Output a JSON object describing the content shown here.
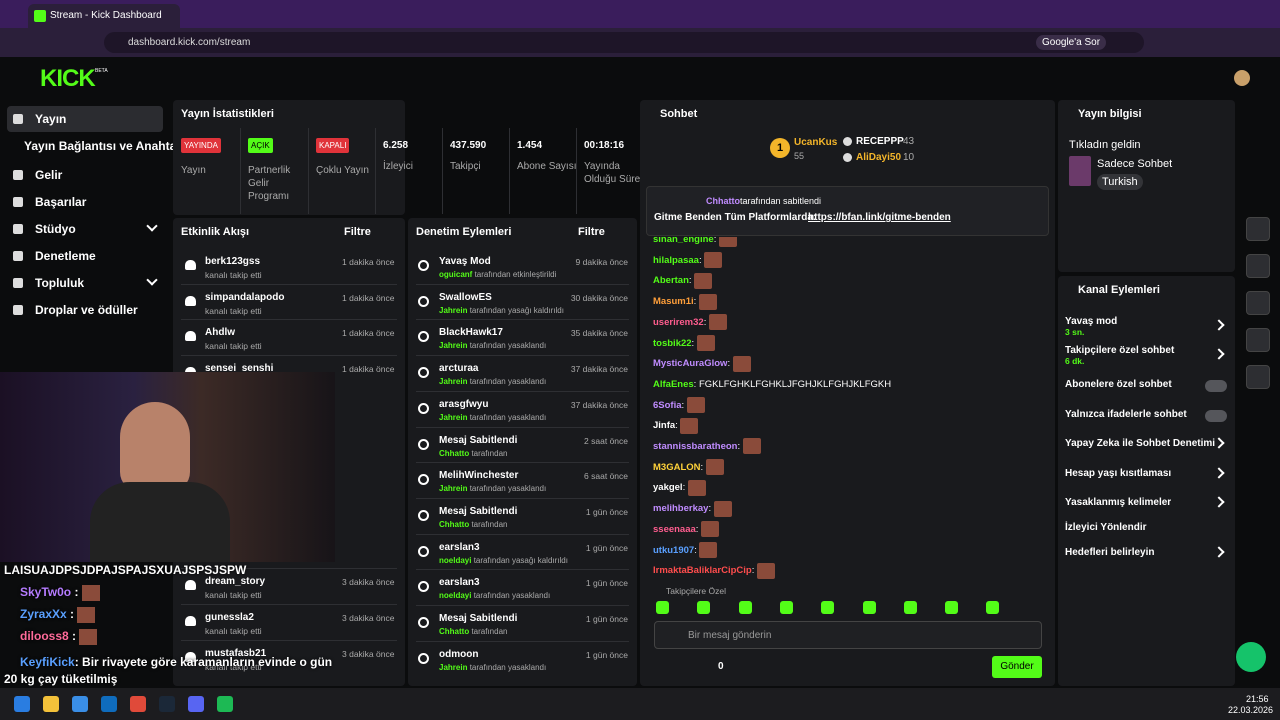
{
  "browser": {
    "tab_title": "Stream - Kick Dashboard",
    "url": "dashboard.kick.com/stream",
    "google_button": "Google'a Sor"
  },
  "header": {
    "logo": "KICK",
    "beta": "BETA"
  },
  "sidebar": {
    "items": [
      "Yayın",
      "Yayın Bağlantısı ve Anahtarı",
      "Gelir",
      "Başarılar",
      "Stüdyo",
      "Denetleme",
      "Topluluk",
      "Droplar ve ödüller"
    ]
  },
  "stats": {
    "title": "Yayın İstatistikleri",
    "items": [
      {
        "badge": "YAYINDA",
        "label": "Yayın"
      },
      {
        "badge": "AÇIK",
        "label": "Partnerlik Gelir Programı"
      },
      {
        "badge": "KAPALI",
        "label": "Çoklu Yayın"
      },
      {
        "value": "6.258",
        "label": "İzleyici"
      },
      {
        "value": "437.590",
        "label": "Takipçi"
      },
      {
        "value": "1.454",
        "label": "Abone Sayısı"
      },
      {
        "value": "00:18:16",
        "label": "Yayında Olduğu Süre"
      }
    ]
  },
  "activity": {
    "title": "Etkinlik Akışı",
    "filter": "Filtre",
    "items": [
      {
        "name": "berk123gss",
        "action": "kanalı takip etti",
        "time": "1 dakika önce"
      },
      {
        "name": "simpandalapodo",
        "action": "kanalı takip etti",
        "time": "1 dakika önce"
      },
      {
        "name": "Ahdlw",
        "action": "kanalı takip etti",
        "time": "1 dakika önce"
      },
      {
        "name": "sensei_senshi",
        "action": "kanalı takip etti",
        "time": "1 dakika önce"
      },
      {
        "name": "dream_story",
        "action": "kanalı takip etti",
        "time": "3 dakika önce"
      },
      {
        "name": "gunessla2",
        "action": "kanalı takip etti",
        "time": "3 dakika önce"
      },
      {
        "name": "mustafasb21",
        "action": "kanalı takip etti",
        "time": "3 dakika önce"
      }
    ]
  },
  "webcam_overlay": {
    "messages": [
      {
        "text": "LAISUAJDPSJDPAJSPAJSXUAJSPSJSPW"
      },
      {
        "user": "SkyTw0o",
        "color": "#b57cff"
      },
      {
        "user": "ZyraxXx",
        "color": "#5aa0ff"
      },
      {
        "user": "dilooss8",
        "color": "#ff6b9a"
      },
      {
        "user": "KeyfiKick",
        "color": "#5aa0ff",
        "text": "Bir rivayete göre karamanların evinde o gün 20 kg çay tüketilmiş"
      }
    ]
  },
  "moderation": {
    "title": "Denetim Eylemleri",
    "filter": "Filtre",
    "items": [
      {
        "title": "Yavaş Mod",
        "by": "oguicanf",
        "desc": "tarafından etkinleştirildi",
        "time": "9 dakika önce"
      },
      {
        "title": "SwallowES",
        "by": "Jahrein",
        "desc": "tarafından yasağı kaldırıldı",
        "time": "30 dakika önce"
      },
      {
        "title": "BlackHawk17",
        "by": "Jahrein",
        "desc": "tarafından yasaklandı",
        "time": "35 dakika önce"
      },
      {
        "title": "arcturaa",
        "by": "Jahrein",
        "desc": "tarafından yasaklandı",
        "time": "37 dakika önce"
      },
      {
        "title": "arasgfwyu",
        "by": "Jahrein",
        "desc": "tarafından yasaklandı",
        "time": "37 dakika önce"
      },
      {
        "title": "Mesaj Sabitlendi",
        "by": "Chhatto",
        "desc": "tarafından",
        "time": "2 saat önce"
      },
      {
        "title": "MelihWinchester",
        "by": "Jahrein",
        "desc": "tarafından yasaklandı",
        "time": "6 saat önce"
      },
      {
        "title": "Mesaj Sabitlendi",
        "by": "Chhatto",
        "desc": "tarafından",
        "time": "1 gün önce"
      },
      {
        "title": "earslan3",
        "by": "noeldayi",
        "desc": "tarafından yasağı kaldırıldı",
        "time": "1 gün önce"
      },
      {
        "title": "earslan3",
        "by": "noeldayi",
        "desc": "tarafından yasaklandı",
        "time": "1 gün önce"
      },
      {
        "title": "Mesaj Sabitlendi",
        "by": "Chhatto",
        "desc": "tarafından",
        "time": "1 gün önce"
      },
      {
        "title": "odmoon",
        "by": "Jahrein",
        "desc": "tarafından yasaklandı",
        "time": "1 gün önce"
      }
    ]
  },
  "chat": {
    "title": "Sohbet",
    "leaders": [
      {
        "rank": 1,
        "name": "UcanKus",
        "points": 55
      },
      {
        "name": "RECEPPP",
        "points": 43
      },
      {
        "name": "AliDayi50",
        "points": 10
      }
    ],
    "pinned": {
      "user": "Chhatto",
      "suffix": "tarafından sabitlendi",
      "message": "Gitme Benden Tüm Platformlarda:",
      "link": "https://bfan.link/gitme-benden"
    },
    "messages": [
      {
        "user": "sinan_engine",
        "color": "#53fc18"
      },
      {
        "user": "hilalpasaa",
        "color": "#53fc18"
      },
      {
        "user": "Abertan",
        "color": "#53fc18"
      },
      {
        "user": "Masum1i",
        "color": "#ff9f3a"
      },
      {
        "user": "userirem32",
        "color": "#ff5d8f"
      },
      {
        "user": "tosbik22",
        "color": "#53fc18"
      },
      {
        "user": "MysticAuraGlow",
        "color": "#c08cff"
      },
      {
        "user": "AlfaEnes",
        "color": "#53fc18",
        "text": "FGKLFGHKLFGHKLJFGHJKLFGHJKLFGKH"
      },
      {
        "user": "6Sofia",
        "color": "#c08cff"
      },
      {
        "user": "Jinfa",
        "color": "#ffffff"
      },
      {
        "user": "stannissbaratheon",
        "color": "#c08cff"
      },
      {
        "user": "M3GALON",
        "color": "#ffd23a"
      },
      {
        "user": "yakgel",
        "color": "#ffffff"
      },
      {
        "user": "melihberkay",
        "color": "#c08cff"
      },
      {
        "user": "sseenaaa",
        "color": "#ff5d8f"
      },
      {
        "user": "utku1907",
        "color": "#5aa0ff"
      },
      {
        "user": "IrmaktaBaliklarCipCip",
        "color": "#ff4d4d"
      }
    ],
    "followers_only": "Takipçilere Özel",
    "placeholder": "Bir mesaj gönderin",
    "count": 0,
    "send": "Gönder"
  },
  "stream_info": {
    "title": "Yayın bilgisi",
    "stream_title": "Tıkladın geldin",
    "category": "Sadece Sohbet",
    "tag": "Turkish"
  },
  "channel_actions": {
    "title": "Kanal Eylemleri",
    "items": [
      {
        "label": "Yavaş mod",
        "sub": "3 sn."
      },
      {
        "label": "Takipçilere özel sohbet",
        "sub": "6 dk."
      },
      {
        "label": "Abonelere özel sohbet"
      },
      {
        "label": "Yalnızca ifadelerle sohbet"
      },
      {
        "label": "Yapay Zeka ile Sohbet Denetimi"
      },
      {
        "label": "Hesap yaşı kısıtlaması"
      },
      {
        "label": "Yasaklanmış kelimeler"
      },
      {
        "label": "İzleyici Yönlendir"
      },
      {
        "label": "Hedefleri belirleyin"
      }
    ]
  },
  "taskbar": {
    "time": "21:56",
    "date": "22.03.2026"
  }
}
